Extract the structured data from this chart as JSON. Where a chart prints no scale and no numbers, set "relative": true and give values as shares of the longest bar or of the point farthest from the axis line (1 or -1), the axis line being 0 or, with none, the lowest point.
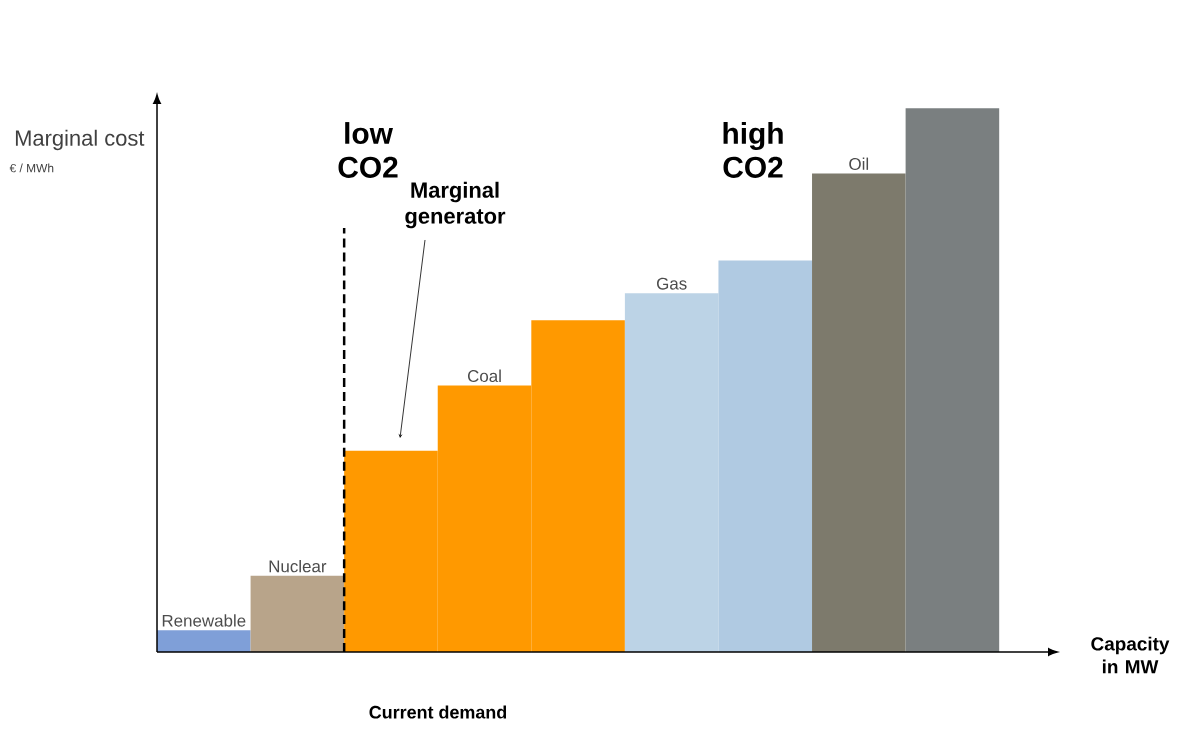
{
  "chart_data": {
    "type": "bar",
    "relative": true,
    "xlabel": "Capacity in MW",
    "ylabel": "Marginal cost",
    "categories": [
      "Renewable",
      "Nuclear",
      null,
      "Coal",
      null,
      "Gas",
      null,
      "Oil",
      null
    ],
    "values": [
      0.04,
      0.14,
      0.37,
      0.49,
      0.61,
      0.66,
      0.72,
      0.88,
      1
    ],
    "colors": [
      "#7f9fd8",
      "#b8a48a",
      "#ff9900",
      "#ff9900",
      "#ff9900",
      "#bcd3e6",
      "#b0cae2",
      "#7d7a6c",
      "#7a7f80"
    ],
    "annotations": [
      "low CO2",
      "high CO2",
      "Marginal generator",
      "€ / MWh",
      "Current demand"
    ]
  }
}
